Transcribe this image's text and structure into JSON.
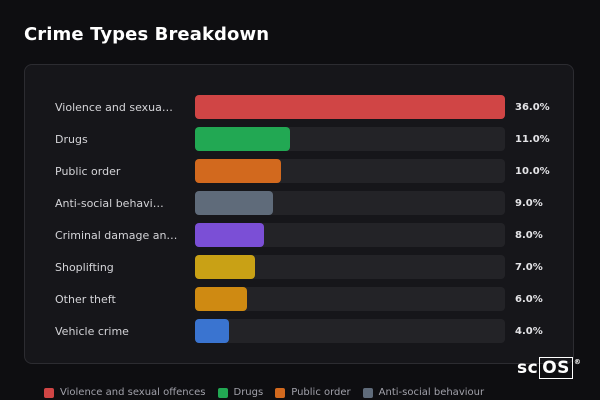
{
  "title": "Crime Types Breakdown",
  "colors": {
    "background": "#0e0e11",
    "card": "#16161a",
    "track": "#232327"
  },
  "chart_data": {
    "type": "bar",
    "orientation": "horizontal",
    "categories": [
      "Violence and sexua…",
      "Drugs",
      "Public order",
      "Anti-social behavi…",
      "Criminal damage an…",
      "Shoplifting",
      "Other theft",
      "Vehicle crime"
    ],
    "values": [
      36.0,
      11.0,
      10.0,
      9.0,
      8.0,
      7.0,
      6.0,
      4.0
    ],
    "value_labels": [
      "36.0%",
      "11.0%",
      "10.0%",
      "9.0%",
      "8.0%",
      "7.0%",
      "6.0%",
      "4.0%"
    ],
    "colors": [
      "#d04545",
      "#22a853",
      "#d2691e",
      "#5f6b7a",
      "#7b4fd6",
      "#c9a115",
      "#cf8a12",
      "#3a74d0"
    ],
    "xlim": [
      0,
      36.0
    ],
    "grid": false,
    "legend_position": "bottom"
  },
  "legend": [
    {
      "label": "Violence and sexual offences",
      "color": "#d04545"
    },
    {
      "label": "Drugs",
      "color": "#22a853"
    },
    {
      "label": "Public order",
      "color": "#d2691e"
    },
    {
      "label": "Anti-social behaviour",
      "color": "#5f6b7a"
    }
  ],
  "logo": {
    "text_a": "sc",
    "text_b": "OS",
    "mark": "®"
  }
}
